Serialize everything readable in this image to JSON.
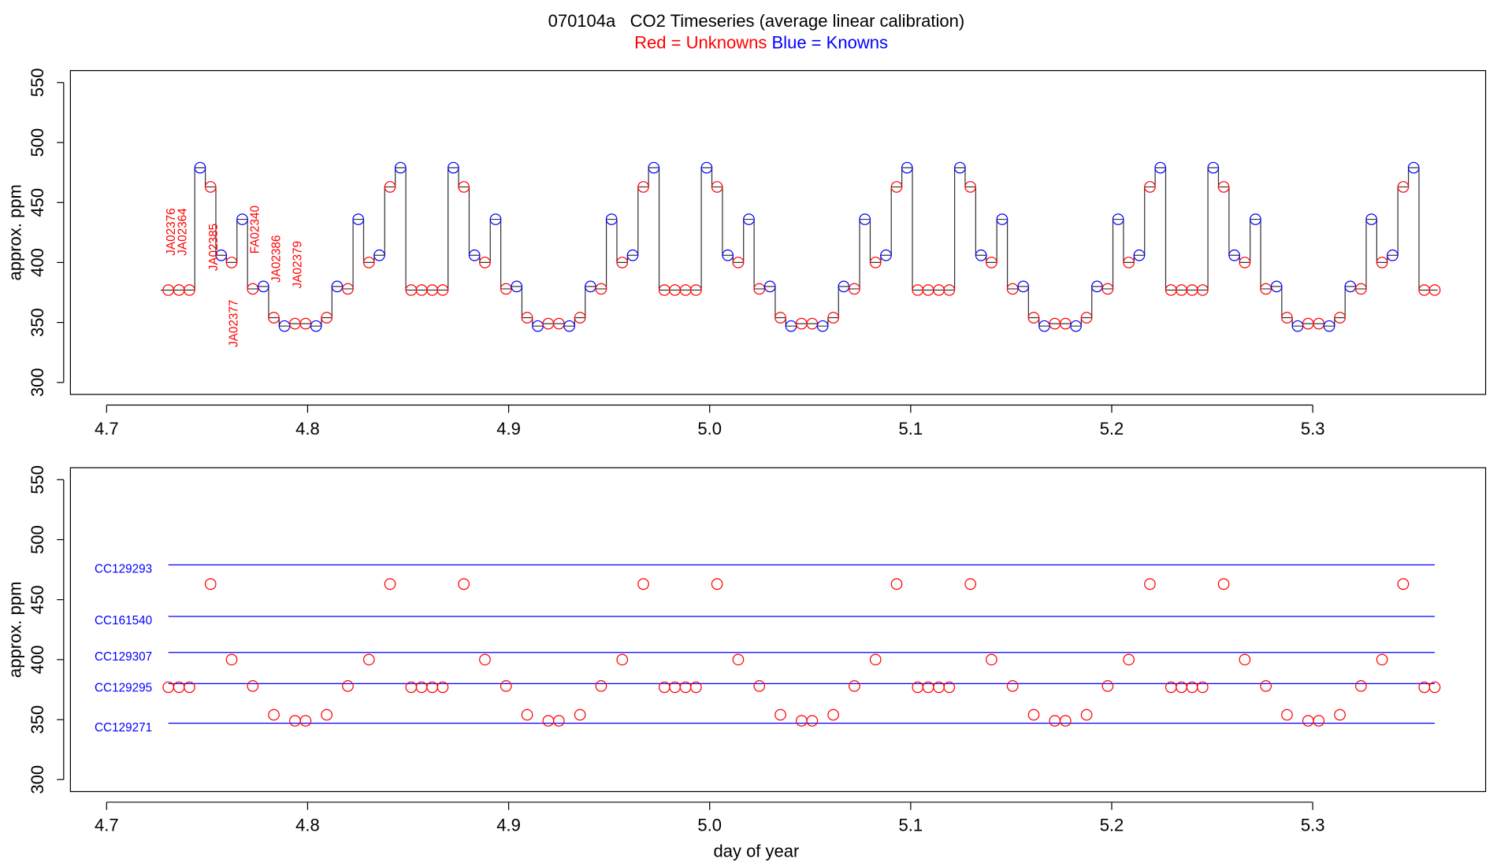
{
  "chart_data": [
    {
      "type": "line",
      "title": "070104a   CO2 Timeseries (average linear calibration)",
      "legend": [
        {
          "name": "Red = Unknowns",
          "color": "red"
        },
        {
          "name": "Blue = Knowns",
          "color": "blue"
        }
      ],
      "ylabel": "approx. ppm",
      "xlim": [
        4.682,
        5.386
      ],
      "xticks": [
        4.7,
        4.8,
        4.9,
        {
          "value": 5,
          "label": "5.0"
        },
        5.1,
        5.2,
        5.3
      ],
      "ylim": [
        290,
        560
      ],
      "yticks": [
        300,
        350,
        400,
        450,
        500,
        550
      ],
      "line_color": "#333333",
      "annotation_color": "red",
      "annotations": [
        "JA02376",
        "JA02364",
        "JA02385",
        "JA02377",
        "FA02340",
        "JA02386",
        "JA02379"
      ],
      "x": [
        4.7307,
        4.736,
        4.7412,
        4.7465,
        4.7517,
        4.757,
        4.7622,
        4.7675,
        4.7727,
        4.778,
        4.7832,
        4.7885,
        4.7937,
        4.799,
        4.8042,
        4.8095,
        4.8147,
        4.82,
        4.8252,
        4.8305,
        4.8357,
        4.841,
        4.8462,
        4.8515,
        4.8567,
        4.862,
        4.8672,
        4.8725,
        4.8777,
        4.883,
        4.8882,
        4.8935,
        4.8987,
        4.904,
        4.9092,
        4.9145,
        4.9197,
        4.925,
        4.9302,
        4.9355,
        4.9407,
        4.946,
        4.9512,
        4.9565,
        4.9617,
        4.967,
        4.9722,
        4.9775,
        4.9827,
        4.988,
        4.9932,
        4.9985,
        5.0037,
        5.009,
        5.0142,
        5.0195,
        5.0247,
        5.03,
        5.0352,
        5.0405,
        5.0457,
        5.051,
        5.0562,
        5.0615,
        5.0667,
        5.072,
        5.0772,
        5.0825,
        5.0877,
        5.093,
        5.0982,
        5.1035,
        5.1087,
        5.114,
        5.1192,
        5.1245,
        5.1297,
        5.135,
        5.1402,
        5.1455,
        5.1507,
        5.156,
        5.1612,
        5.1665,
        5.1717,
        5.177,
        5.1822,
        5.1875,
        5.1927,
        5.198,
        5.2032,
        5.2085,
        5.2137,
        5.219,
        5.2242,
        5.2295,
        5.2347,
        5.24,
        5.2452,
        5.2505,
        5.2557,
        5.261,
        5.2662,
        5.2715,
        5.2767,
        5.282,
        5.2872,
        5.2925,
        5.2977,
        5.303,
        5.3082,
        5.3135,
        5.3187,
        5.324,
        5.3292,
        5.3345,
        5.3397,
        5.345,
        5.3502,
        5.3555,
        5.3607
      ],
      "values": [
        377,
        377,
        377,
        479,
        463,
        406,
        400,
        436,
        378,
        380,
        354,
        347,
        349,
        349,
        347,
        354,
        380,
        378,
        436,
        400,
        406,
        463,
        479,
        377,
        377,
        377,
        377,
        479,
        463,
        406,
        400,
        436,
        378,
        380,
        354,
        347,
        349,
        349,
        347,
        354,
        380,
        378,
        436,
        400,
        406,
        463,
        479,
        377,
        377,
        377,
        377,
        479,
        463,
        406,
        400,
        436,
        378,
        380,
        354,
        347,
        349,
        349,
        347,
        354,
        380,
        378,
        436,
        400,
        406,
        463,
        479,
        377,
        377,
        377,
        377,
        479,
        463,
        406,
        400,
        436,
        378,
        380,
        354,
        347,
        349,
        349,
        347,
        354,
        380,
        378,
        436,
        400,
        406,
        463,
        479,
        377,
        377,
        377,
        377,
        479,
        463,
        406,
        400,
        436,
        378,
        380,
        354,
        347,
        349,
        349,
        347,
        354,
        380,
        378,
        436,
        400,
        406,
        463,
        479,
        377,
        377
      ],
      "point_colors": [
        "red",
        "red",
        "red",
        "blue",
        "red",
        "blue",
        "red",
        "blue",
        "red",
        "blue",
        "red",
        "blue",
        "red",
        "red",
        "blue",
        "red",
        "blue",
        "red",
        "blue",
        "red",
        "blue",
        "red",
        "blue",
        "red",
        "red",
        "red",
        "red",
        "blue",
        "red",
        "blue",
        "red",
        "blue",
        "red",
        "blue",
        "red",
        "blue",
        "red",
        "red",
        "blue",
        "red",
        "blue",
        "red",
        "blue",
        "red",
        "blue",
        "red",
        "blue",
        "red",
        "red",
        "red",
        "red",
        "blue",
        "red",
        "blue",
        "red",
        "blue",
        "red",
        "blue",
        "red",
        "blue",
        "red",
        "red",
        "blue",
        "red",
        "blue",
        "red",
        "blue",
        "red",
        "blue",
        "red",
        "blue",
        "red",
        "red",
        "red",
        "red",
        "blue",
        "red",
        "blue",
        "red",
        "blue",
        "red",
        "blue",
        "red",
        "blue",
        "red",
        "red",
        "blue",
        "red",
        "blue",
        "red",
        "blue",
        "red",
        "blue",
        "red",
        "blue",
        "red",
        "red",
        "red",
        "red",
        "blue",
        "red",
        "blue",
        "red",
        "blue",
        "red",
        "blue",
        "red",
        "blue",
        "red",
        "red",
        "blue",
        "red",
        "blue",
        "red",
        "blue",
        "red",
        "blue",
        "red",
        "blue",
        "red",
        "red"
      ]
    },
    {
      "type": "scatter",
      "ylabel": "approx. ppm",
      "xlabel": "day of year",
      "xlim": [
        4.682,
        5.386
      ],
      "xticks": [
        4.7,
        4.8,
        4.9,
        {
          "value": 5,
          "label": "5.0"
        },
        5.1,
        5.2,
        5.3
      ],
      "ylim": [
        290,
        560
      ],
      "yticks": [
        300,
        350,
        400,
        450,
        500,
        550
      ],
      "reference_color": "blue",
      "reference_lines": [
        {
          "label": "CC129293",
          "value": 479
        },
        {
          "label": "CC161540",
          "value": 436
        },
        {
          "label": "CC129307",
          "value": 406
        },
        {
          "label": "CC129295",
          "value": 380
        },
        {
          "label": "CC129271",
          "value": 347
        }
      ],
      "series": [
        {
          "color": "red",
          "x": [
            4.7307,
            4.736,
            4.7412,
            4.7517,
            4.7622,
            4.7727,
            4.7832,
            4.7937,
            4.799,
            4.8095,
            4.82,
            4.8305,
            4.841,
            4.8515,
            4.8567,
            4.862,
            4.8672,
            4.8777,
            4.8882,
            4.8987,
            4.9092,
            4.9197,
            4.925,
            4.9355,
            4.946,
            4.9565,
            4.967,
            4.9775,
            4.9827,
            4.988,
            4.9932,
            5.0037,
            5.0142,
            5.0247,
            5.0352,
            5.0457,
            5.051,
            5.0615,
            5.072,
            5.0825,
            5.093,
            5.1035,
            5.1087,
            5.114,
            5.1192,
            5.1297,
            5.1402,
            5.1507,
            5.1612,
            5.1717,
            5.177,
            5.1875,
            5.198,
            5.2085,
            5.219,
            5.2295,
            5.2347,
            5.24,
            5.2452,
            5.2557,
            5.2662,
            5.2767,
            5.2872,
            5.2977,
            5.303,
            5.3135,
            5.324,
            5.3345,
            5.345,
            5.3555,
            5.3607
          ],
          "values": [
            377,
            377,
            377,
            463,
            400,
            378,
            354,
            349,
            349,
            354,
            378,
            400,
            463,
            377,
            377,
            377,
            377,
            463,
            400,
            378,
            354,
            349,
            349,
            354,
            378,
            400,
            463,
            377,
            377,
            377,
            377,
            463,
            400,
            378,
            354,
            349,
            349,
            354,
            378,
            400,
            463,
            377,
            377,
            377,
            377,
            463,
            400,
            378,
            354,
            349,
            349,
            354,
            378,
            400,
            463,
            377,
            377,
            377,
            377,
            463,
            400,
            378,
            354,
            349,
            349,
            354,
            378,
            400,
            463,
            377,
            377
          ]
        }
      ]
    }
  ]
}
